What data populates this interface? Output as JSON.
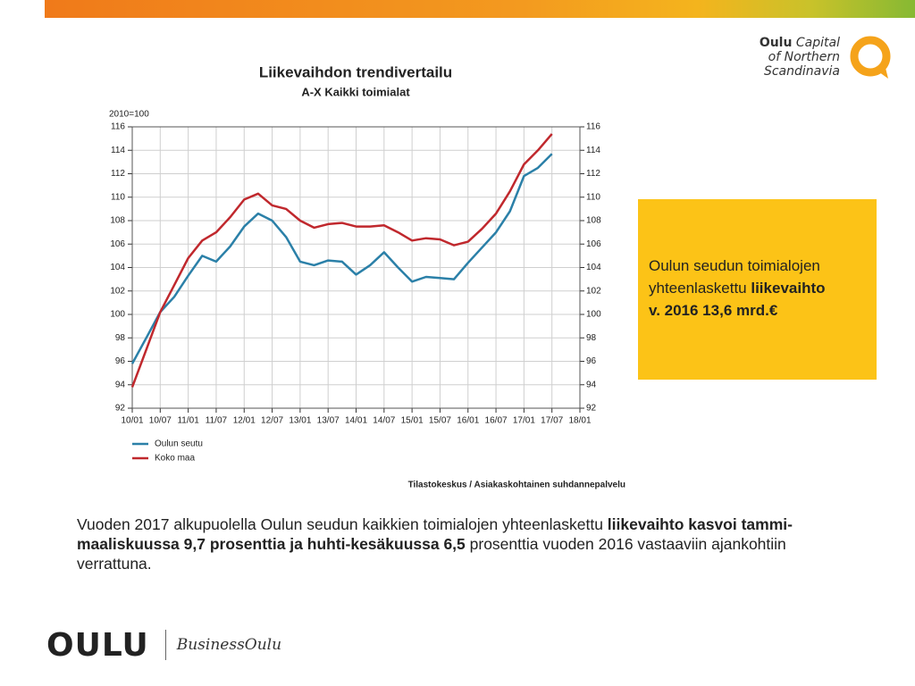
{
  "chart_data": {
    "type": "line",
    "title": "Liikevaihdon trendivertailu",
    "subtitle": "A-X Kaikki toimialat",
    "y_label": "2010=100",
    "source": "Tilastokeskus / Asiakaskohtainen suhdannepalvelu",
    "categories": [
      "10/01",
      null,
      "10/07",
      null,
      "11/01",
      null,
      "11/07",
      null,
      "12/01",
      null,
      "12/07",
      null,
      "13/01",
      null,
      "13/07",
      null,
      "14/01",
      null,
      "14/07",
      null,
      "15/01",
      null,
      "15/07",
      null,
      "16/01",
      null,
      "16/07",
      null,
      "17/01",
      null,
      "17/07",
      null,
      "18/01"
    ],
    "series": [
      {
        "name": "Oulun seutu",
        "color": "#2b80a8",
        "values": [
          95.8,
          98,
          100.2,
          101.5,
          103.3,
          105,
          104.5,
          105.8,
          107.5,
          108.6,
          108,
          106.6,
          104.5,
          104.2,
          104.6,
          104.5,
          103.4,
          104.2,
          105.3,
          104,
          102.8,
          103.2,
          103.1,
          103,
          104.4,
          105.7,
          107,
          108.8,
          111.8,
          112.5,
          113.7,
          null,
          null
        ]
      },
      {
        "name": "Koko maa",
        "color": "#c0282d",
        "values": [
          93.8,
          97,
          100.2,
          102.5,
          104.8,
          106.3,
          107,
          108.3,
          109.8,
          110.3,
          109.3,
          109,
          108,
          107.4,
          107.7,
          107.8,
          107.5,
          107.5,
          107.6,
          107,
          106.3,
          106.5,
          106.4,
          105.9,
          106.2,
          107.3,
          108.6,
          110.5,
          112.8,
          114,
          115.4,
          null,
          null
        ]
      }
    ],
    "ylim": [
      92,
      116
    ],
    "yticks": [
      92,
      94,
      96,
      98,
      100,
      102,
      104,
      106,
      108,
      110,
      112,
      114,
      116
    ],
    "y2lim": [
      92,
      116
    ],
    "y2ticks": [
      92,
      94,
      96,
      98,
      100,
      102,
      104,
      106,
      108,
      110,
      112,
      114,
      116
    ],
    "grid": true,
    "legend": "bottom-left"
  },
  "logo": {
    "brand": "Oulu",
    "tagline": "Capital",
    "line2": "of Northern",
    "line3": "Scandinavia"
  },
  "callout": {
    "text": "Oulun seudun toimialojen yhteenlaskettu ",
    "bold1": "liikevaihto",
    "bold2": "v. 2016 13,6 mrd.€"
  },
  "body": {
    "p1": "Vuoden 2017 alkupuolella Oulun seudun kaikkien toimialojen yhteenlaskettu ",
    "b1": "liikevaihto kasvoi tammi-maaliskuussa 9,7 prosenttia ja huhti-kesäkuussa 6,5",
    "p2": " prosenttia vuoden 2016 vastaaviin ajankohtiin verrattuna."
  },
  "footer": {
    "brand": "OULU",
    "unit": "BusinessOulu"
  }
}
